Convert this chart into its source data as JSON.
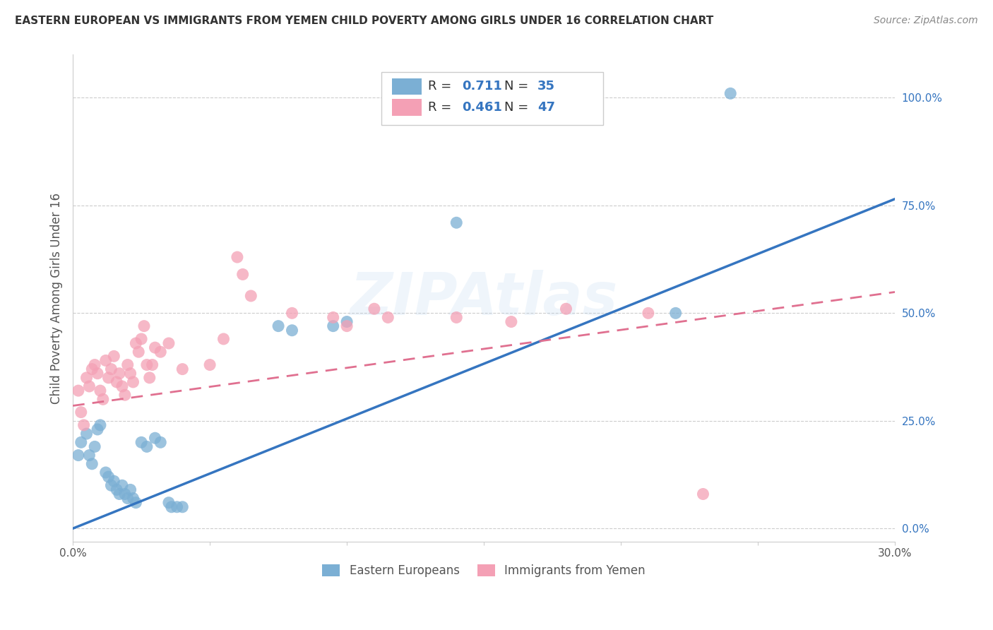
{
  "title": "EASTERN EUROPEAN VS IMMIGRANTS FROM YEMEN CHILD POVERTY AMONG GIRLS UNDER 16 CORRELATION CHART",
  "source": "Source: ZipAtlas.com",
  "ylabel": "Child Poverty Among Girls Under 16",
  "xmin": 0.0,
  "xmax": 0.3,
  "ymin": -0.03,
  "ymax": 1.1,
  "right_yticks": [
    0.0,
    0.25,
    0.5,
    0.75,
    1.0
  ],
  "right_yticklabels": [
    "0.0%",
    "25.0%",
    "50.0%",
    "75.0%",
    "100.0%"
  ],
  "xticks": [
    0.0,
    0.05,
    0.1,
    0.15,
    0.2,
    0.25,
    0.3
  ],
  "xticklabels": [
    "0.0%",
    "",
    "",
    "",
    "",
    "",
    "30.0%"
  ],
  "blue_R": 0.711,
  "blue_N": 35,
  "pink_R": 0.461,
  "pink_N": 47,
  "blue_color": "#7BAFD4",
  "pink_color": "#F4A0B5",
  "blue_line_color": "#3575C0",
  "pink_line_color": "#E07090",
  "blue_intercept": 0.0,
  "blue_slope": 2.55,
  "pink_intercept": 0.285,
  "pink_slope": 0.88,
  "blue_scatter": [
    [
      0.002,
      0.17
    ],
    [
      0.003,
      0.2
    ],
    [
      0.005,
      0.22
    ],
    [
      0.006,
      0.17
    ],
    [
      0.007,
      0.15
    ],
    [
      0.008,
      0.19
    ],
    [
      0.009,
      0.23
    ],
    [
      0.01,
      0.24
    ],
    [
      0.012,
      0.13
    ],
    [
      0.013,
      0.12
    ],
    [
      0.014,
      0.1
    ],
    [
      0.015,
      0.11
    ],
    [
      0.016,
      0.09
    ],
    [
      0.017,
      0.08
    ],
    [
      0.018,
      0.1
    ],
    [
      0.019,
      0.08
    ],
    [
      0.02,
      0.07
    ],
    [
      0.021,
      0.09
    ],
    [
      0.022,
      0.07
    ],
    [
      0.023,
      0.06
    ],
    [
      0.025,
      0.2
    ],
    [
      0.027,
      0.19
    ],
    [
      0.03,
      0.21
    ],
    [
      0.032,
      0.2
    ],
    [
      0.035,
      0.06
    ],
    [
      0.036,
      0.05
    ],
    [
      0.038,
      0.05
    ],
    [
      0.04,
      0.05
    ],
    [
      0.075,
      0.47
    ],
    [
      0.08,
      0.46
    ],
    [
      0.095,
      0.47
    ],
    [
      0.1,
      0.48
    ],
    [
      0.14,
      0.71
    ],
    [
      0.22,
      0.5
    ],
    [
      0.24,
      1.01
    ]
  ],
  "pink_scatter": [
    [
      0.002,
      0.32
    ],
    [
      0.003,
      0.27
    ],
    [
      0.004,
      0.24
    ],
    [
      0.005,
      0.35
    ],
    [
      0.006,
      0.33
    ],
    [
      0.007,
      0.37
    ],
    [
      0.008,
      0.38
    ],
    [
      0.009,
      0.36
    ],
    [
      0.01,
      0.32
    ],
    [
      0.011,
      0.3
    ],
    [
      0.012,
      0.39
    ],
    [
      0.013,
      0.35
    ],
    [
      0.014,
      0.37
    ],
    [
      0.015,
      0.4
    ],
    [
      0.016,
      0.34
    ],
    [
      0.017,
      0.36
    ],
    [
      0.018,
      0.33
    ],
    [
      0.019,
      0.31
    ],
    [
      0.02,
      0.38
    ],
    [
      0.021,
      0.36
    ],
    [
      0.022,
      0.34
    ],
    [
      0.023,
      0.43
    ],
    [
      0.024,
      0.41
    ],
    [
      0.025,
      0.44
    ],
    [
      0.026,
      0.47
    ],
    [
      0.027,
      0.38
    ],
    [
      0.028,
      0.35
    ],
    [
      0.029,
      0.38
    ],
    [
      0.03,
      0.42
    ],
    [
      0.032,
      0.41
    ],
    [
      0.035,
      0.43
    ],
    [
      0.04,
      0.37
    ],
    [
      0.05,
      0.38
    ],
    [
      0.055,
      0.44
    ],
    [
      0.06,
      0.63
    ],
    [
      0.062,
      0.59
    ],
    [
      0.065,
      0.54
    ],
    [
      0.095,
      0.49
    ],
    [
      0.1,
      0.47
    ],
    [
      0.11,
      0.51
    ],
    [
      0.115,
      0.49
    ],
    [
      0.14,
      0.49
    ],
    [
      0.16,
      0.48
    ],
    [
      0.18,
      0.51
    ],
    [
      0.21,
      0.5
    ],
    [
      0.08,
      0.5
    ],
    [
      0.23,
      0.08
    ]
  ],
  "watermark_text": "ZIPAtlas",
  "background_color": "#FFFFFF",
  "grid_color": "#CCCCCC"
}
